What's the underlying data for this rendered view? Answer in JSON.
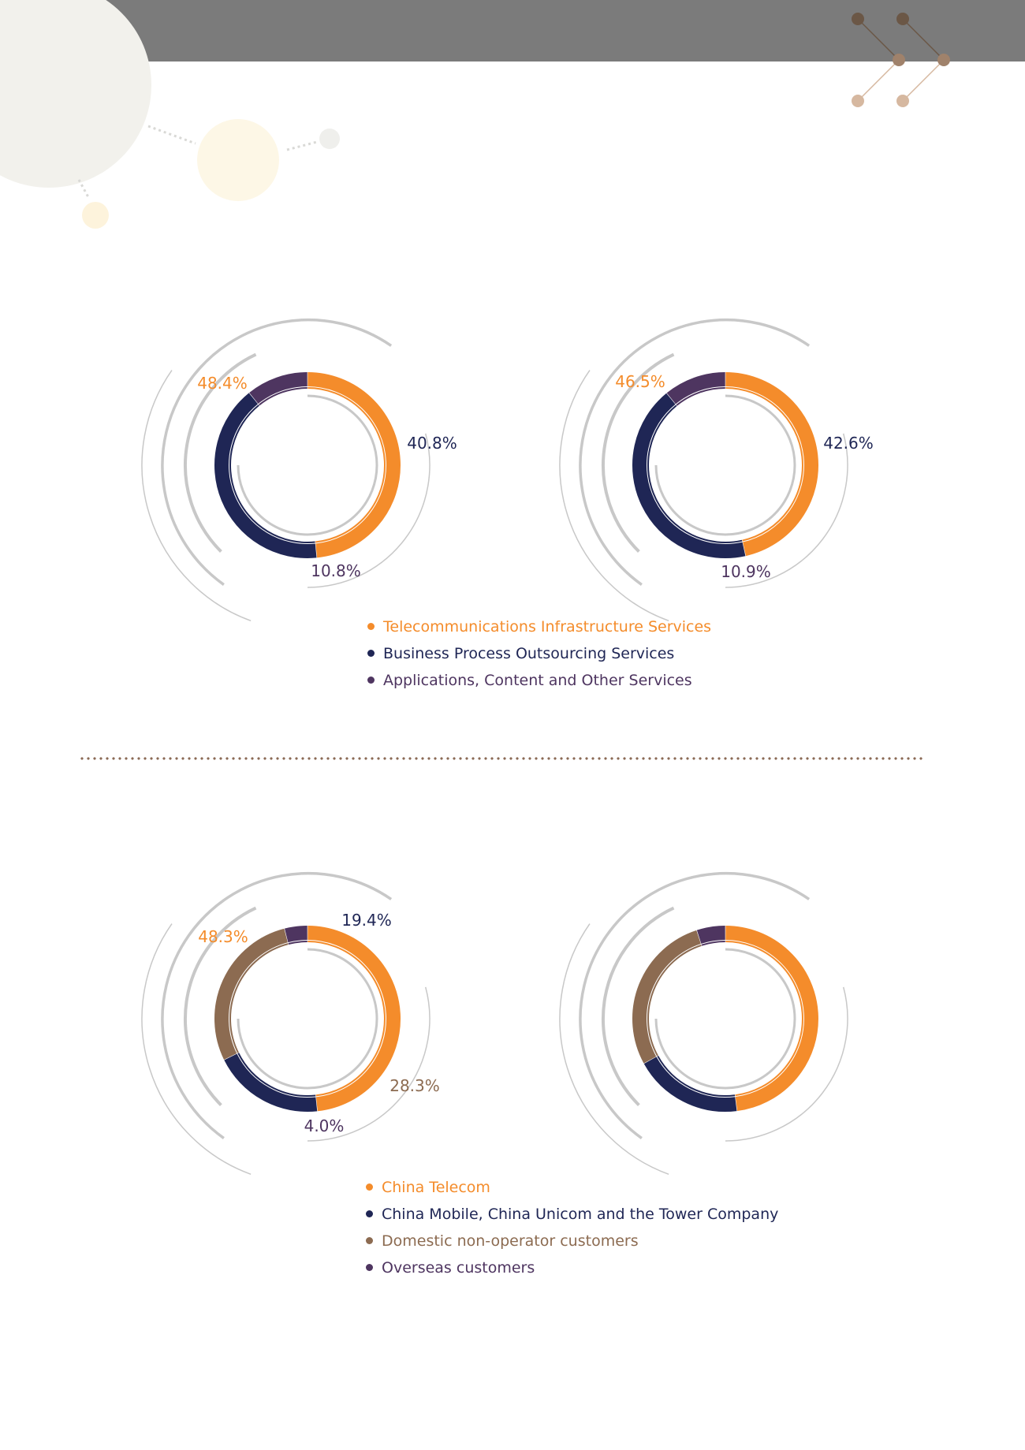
{
  "colors": {
    "orange": "#f48c2b",
    "navy": "#1f2655",
    "purple": "#4e3560",
    "brown": "#8c6b51",
    "grey": "#c8c8c8",
    "header": "#7b7b7b"
  },
  "charts": [
    {
      "id": "service-top-left",
      "slices": [
        {
          "name": "Telecommunications Infrastructure Services",
          "value": 48.4,
          "label": "48.4%",
          "color": "#f48c2b"
        },
        {
          "name": "Business Process Outsourcing Services",
          "value": 40.8,
          "label": "40.8%",
          "color": "#1f2655"
        },
        {
          "name": "Applications, Content and Other Services",
          "value": 10.8,
          "label": "10.8%",
          "color": "#4e3560"
        }
      ]
    },
    {
      "id": "service-top-right",
      "slices": [
        {
          "name": "Telecommunications Infrastructure Services",
          "value": 46.5,
          "label": "46.5%",
          "color": "#f48c2b"
        },
        {
          "name": "Business Process Outsourcing Services",
          "value": 42.6,
          "label": "42.6%",
          "color": "#1f2655"
        },
        {
          "name": "Applications, Content and Other Services",
          "value": 10.9,
          "label": "10.9%",
          "color": "#4e3560"
        }
      ]
    },
    {
      "id": "customer-bottom-left",
      "slices": [
        {
          "name": "China Telecom",
          "value": 48.3,
          "label": "48.3%",
          "color": "#f48c2b"
        },
        {
          "name": "China Mobile, China Unicom and the Tower Company",
          "value": 19.4,
          "label": "19.4%",
          "color": "#1f2655"
        },
        {
          "name": "Domestic non-operator customers",
          "value": 28.3,
          "label": "28.3%",
          "color": "#8c6b51"
        },
        {
          "name": "Overseas customers",
          "value": 4.0,
          "label": "4.0%",
          "color": "#4e3560"
        }
      ]
    },
    {
      "id": "customer-bottom-right",
      "slices": [
        {
          "name": "China Telecom",
          "value": 48.0,
          "label": "",
          "color": "#f48c2b"
        },
        {
          "name": "China Mobile, China Unicom and the Tower Company",
          "value": 19.0,
          "label": "",
          "color": "#1f2655"
        },
        {
          "name": "Domestic non-operator customers",
          "value": 28.0,
          "label": "",
          "color": "#8c6b51"
        },
        {
          "name": "Overseas customers",
          "value": 5.0,
          "label": "",
          "color": "#4e3560"
        }
      ]
    }
  ],
  "legend_top": [
    {
      "label": "Telecommunications Infrastructure Services",
      "color": "#f48c2b"
    },
    {
      "label": "Business Process Outsourcing Services",
      "color": "#1f2655"
    },
    {
      "label": "Applications, Content and Other Services",
      "color": "#4e3560"
    }
  ],
  "legend_bottom": [
    {
      "label": "China Telecom",
      "color": "#f48c2b"
    },
    {
      "label": "China Mobile, China Unicom and the Tower Company",
      "color": "#1f2655"
    },
    {
      "label": "Domestic non-operator customers",
      "color": "#8c6b51"
    },
    {
      "label": "Overseas customers",
      "color": "#4e3560"
    }
  ],
  "chart_data": [
    {
      "type": "pie",
      "categories": [
        "Telecommunications Infrastructure Services",
        "Business Process Outsourcing Services",
        "Applications, Content and Other Services"
      ],
      "values": [
        48.4,
        40.8,
        10.8
      ]
    },
    {
      "type": "pie",
      "categories": [
        "Telecommunications Infrastructure Services",
        "Business Process Outsourcing Services",
        "Applications, Content and Other Services"
      ],
      "values": [
        46.5,
        42.6,
        10.9
      ]
    },
    {
      "type": "pie",
      "categories": [
        "China Telecom",
        "China Mobile, China Unicom and the Tower Company",
        "Domestic non-operator customers",
        "Overseas customers"
      ],
      "values": [
        48.3,
        19.4,
        28.3,
        4.0
      ]
    },
    {
      "type": "pie",
      "categories": [
        "China Telecom",
        "China Mobile, China Unicom and the Tower Company",
        "Domestic non-operator customers",
        "Overseas customers"
      ],
      "values": [
        48.0,
        19.0,
        28.0,
        5.0
      ]
    }
  ]
}
